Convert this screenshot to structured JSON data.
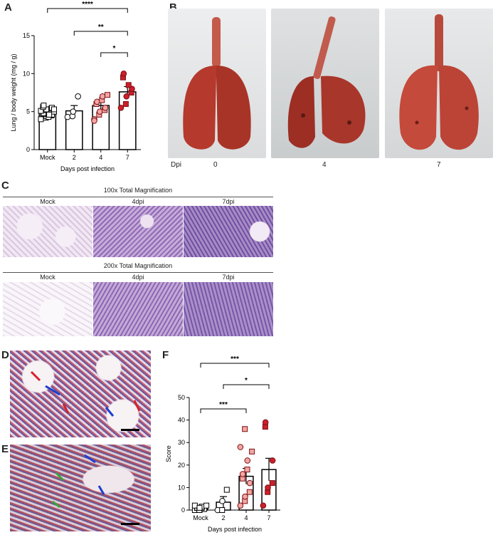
{
  "panels": {
    "a": "A",
    "b": "B",
    "c": "C",
    "d": "D",
    "e": "E",
    "f": "F"
  },
  "chart_data": [
    {
      "type": "bar",
      "categories": [
        "Mock",
        "2",
        "4",
        "7"
      ],
      "xlabel": "Days post infection",
      "ylabel": "Lung / body weight (mg / g)",
      "ylim": [
        0,
        15
      ],
      "yticks": [
        0,
        5,
        10,
        15
      ],
      "values": [
        4.9,
        5.1,
        5.8,
        7.6
      ],
      "sem": [
        0.3,
        0.7,
        0.5,
        0.7
      ],
      "points": [
        [
          4.0,
          4.2,
          4.4,
          4.5,
          4.6,
          4.7,
          4.8,
          4.9,
          5.0,
          5.0,
          5.1,
          5.2,
          5.3,
          5.4,
          5.5,
          5.6,
          5.8,
          4.3,
          4.6,
          5.3
        ],
        [
          4.3,
          4.4,
          5.0,
          7.0
        ],
        [
          4.0,
          4.6,
          5.0,
          5.2,
          5.5,
          6.0,
          6.3,
          6.5,
          7.0,
          7.2,
          3.8
        ],
        [
          5.5,
          6.0,
          7.0,
          7.5,
          8.0,
          9.5,
          10.0,
          8.5
        ]
      ],
      "point_colors": [
        "#ffffff",
        "#ffffff",
        "#f4a6a2",
        "#cc1f2b"
      ],
      "point_shapes": [
        "square",
        "circle",
        "mixed",
        "mixed"
      ],
      "significance": [
        {
          "from": "Mock",
          "to": "7",
          "label": "****"
        },
        {
          "from": "2",
          "to": "7",
          "label": "**"
        },
        {
          "from": "4",
          "to": "7",
          "label": "*"
        }
      ]
    },
    {
      "type": "bar",
      "categories": [
        "Mock",
        "2",
        "4",
        "7"
      ],
      "xlabel": "Days post infection",
      "ylabel": "Score",
      "ylim": [
        0,
        50
      ],
      "yticks": [
        0,
        10,
        20,
        30,
        40,
        50
      ],
      "values": [
        0.5,
        3.5,
        15.0,
        18.0
      ],
      "sem": [
        0.3,
        2.5,
        3.5,
        5.0
      ],
      "points": [
        [
          0,
          0,
          0,
          0.5,
          0.5,
          1,
          1,
          1,
          1.5,
          2,
          2,
          0,
          1
        ],
        [
          0,
          0,
          4,
          9
        ],
        [
          2,
          4,
          6,
          8,
          12,
          14,
          16,
          18,
          22,
          26,
          28,
          36
        ],
        [
          2,
          8,
          10,
          12,
          22,
          37,
          39
        ]
      ],
      "point_colors": [
        "#ffffff",
        "#ffffff",
        "#f4a6a2",
        "#cc1f2b"
      ],
      "point_shapes": [
        "square",
        "mixed",
        "mixed",
        "mixed"
      ],
      "significance": [
        {
          "from": "Mock",
          "to": "7",
          "label": "***"
        },
        {
          "from": "2",
          "to": "7",
          "label": "*"
        },
        {
          "from": "Mock",
          "to": "4",
          "label": "***"
        }
      ]
    }
  ],
  "gross": {
    "dpi_label": "Dpi",
    "days": [
      "0",
      "4",
      "7"
    ]
  },
  "histology": {
    "row1_title": "100x Total Magnification",
    "row2_title": "200x Total Magnification",
    "labels": [
      "Mock",
      "4dpi",
      "7dpi"
    ]
  },
  "colors": {
    "lung_tissue": "#b5392c",
    "h_and_e_light": "#e6d7ec",
    "h_and_e_dark": "#7a5aa8",
    "point_light": "#f4a6a2",
    "point_dark": "#cc1f2b"
  }
}
